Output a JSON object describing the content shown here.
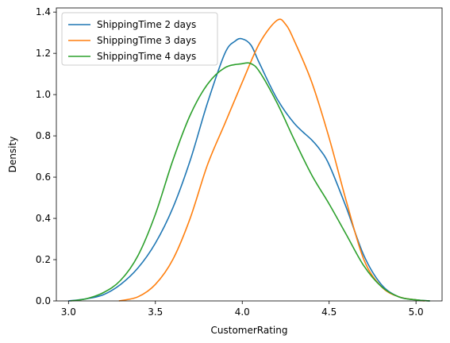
{
  "chart_data": {
    "type": "line",
    "title": "",
    "xlabel": "CustomerRating",
    "ylabel": "Density",
    "xlim": [
      2.93,
      5.15
    ],
    "ylim": [
      0,
      1.42
    ],
    "x_ticks": [
      3.0,
      3.5,
      4.0,
      4.5,
      5.0
    ],
    "x_tick_labels": [
      "3.0",
      "3.5",
      "4.0",
      "4.5",
      "5.0"
    ],
    "y_ticks": [
      0,
      0.2,
      0.4,
      0.6,
      0.8,
      1.0,
      1.2,
      1.4
    ],
    "y_tick_labels": [
      "0.0",
      "0.2",
      "0.4",
      "0.6",
      "0.8",
      "1.0",
      "1.2",
      "1.4"
    ],
    "grid": false,
    "legend_position": "top-left",
    "series": [
      {
        "name": "ShippingTime 2 days",
        "color": "#1f77b4",
        "points": [
          [
            3.0,
            0.0
          ],
          [
            3.1,
            0.01
          ],
          [
            3.2,
            0.03
          ],
          [
            3.3,
            0.08
          ],
          [
            3.4,
            0.16
          ],
          [
            3.5,
            0.28
          ],
          [
            3.6,
            0.45
          ],
          [
            3.7,
            0.68
          ],
          [
            3.8,
            0.96
          ],
          [
            3.9,
            1.2
          ],
          [
            3.96,
            1.26
          ],
          [
            4.0,
            1.27
          ],
          [
            4.05,
            1.24
          ],
          [
            4.1,
            1.15
          ],
          [
            4.2,
            0.98
          ],
          [
            4.3,
            0.86
          ],
          [
            4.4,
            0.78
          ],
          [
            4.45,
            0.73
          ],
          [
            4.5,
            0.66
          ],
          [
            4.6,
            0.45
          ],
          [
            4.7,
            0.22
          ],
          [
            4.8,
            0.08
          ],
          [
            4.9,
            0.02
          ],
          [
            5.0,
            0.005
          ],
          [
            5.08,
            0.0
          ]
        ]
      },
      {
        "name": "ShippingTime 3 days",
        "color": "#ff7f0e",
        "points": [
          [
            3.29,
            0.0
          ],
          [
            3.4,
            0.02
          ],
          [
            3.5,
            0.08
          ],
          [
            3.6,
            0.2
          ],
          [
            3.7,
            0.4
          ],
          [
            3.8,
            0.66
          ],
          [
            3.9,
            0.86
          ],
          [
            4.0,
            1.06
          ],
          [
            4.1,
            1.25
          ],
          [
            4.2,
            1.36
          ],
          [
            4.25,
            1.34
          ],
          [
            4.3,
            1.26
          ],
          [
            4.4,
            1.06
          ],
          [
            4.5,
            0.79
          ],
          [
            4.6,
            0.48
          ],
          [
            4.7,
            0.2
          ],
          [
            4.8,
            0.07
          ],
          [
            4.9,
            0.02
          ],
          [
            5.0,
            0.005
          ],
          [
            5.05,
            0.0
          ]
        ]
      },
      {
        "name": "ShippingTime 4 days",
        "color": "#2ca02c",
        "points": [
          [
            3.01,
            0.0
          ],
          [
            3.1,
            0.01
          ],
          [
            3.2,
            0.04
          ],
          [
            3.3,
            0.1
          ],
          [
            3.4,
            0.22
          ],
          [
            3.5,
            0.42
          ],
          [
            3.6,
            0.68
          ],
          [
            3.7,
            0.9
          ],
          [
            3.8,
            1.05
          ],
          [
            3.9,
            1.13
          ],
          [
            4.0,
            1.15
          ],
          [
            4.05,
            1.15
          ],
          [
            4.1,
            1.11
          ],
          [
            4.2,
            0.96
          ],
          [
            4.3,
            0.78
          ],
          [
            4.4,
            0.61
          ],
          [
            4.5,
            0.47
          ],
          [
            4.6,
            0.32
          ],
          [
            4.7,
            0.17
          ],
          [
            4.8,
            0.07
          ],
          [
            4.9,
            0.02
          ],
          [
            5.0,
            0.005
          ],
          [
            5.08,
            0.0
          ]
        ]
      }
    ]
  }
}
